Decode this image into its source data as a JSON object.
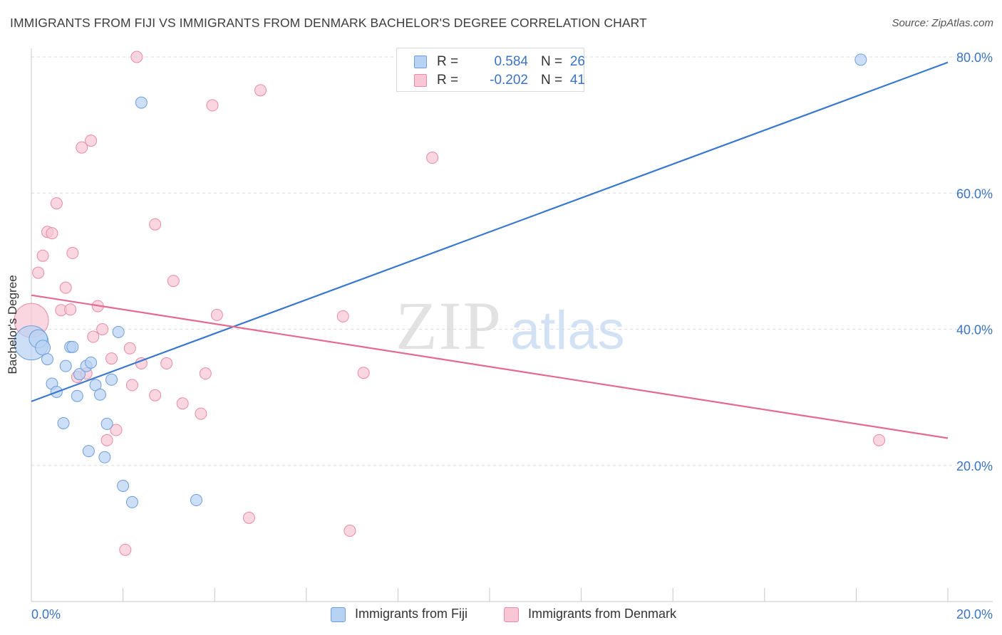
{
  "title": "IMMIGRANTS FROM FIJI VS IMMIGRANTS FROM DENMARK BACHELOR'S DEGREE CORRELATION CHART",
  "source": "Source: ZipAtlas.com",
  "watermark": {
    "zip": "ZIP",
    "atlas": "atlas"
  },
  "legend": {
    "r_label": "R =",
    "n_label": "N =",
    "fiji": {
      "r": "0.584",
      "n": "26"
    },
    "denmark": {
      "r": "-0.202",
      "n": "41"
    }
  },
  "colors": {
    "fiji_fill": "#b8d2f3",
    "fiji_stroke": "#6d9edd",
    "fiji_line": "#3a78d0",
    "denmark_fill": "#f8c6d4",
    "denmark_stroke": "#e98aa6",
    "denmark_line": "#e46a94",
    "axis_text": "#3b74c4"
  },
  "chart_data": {
    "type": "scatter",
    "title": "IMMIGRANTS FROM FIJI VS IMMIGRANTS FROM DENMARK BACHELOR'S DEGREE CORRELATION CHART",
    "xlabel": "",
    "ylabel": "Bachelor's Degree",
    "xlim": [
      0,
      20
    ],
    "ylim": [
      0,
      80
    ],
    "x_tick_labels": [
      "0.0%",
      "20.0%"
    ],
    "y_ticks": [
      20,
      40,
      60,
      80
    ],
    "y_tick_labels": [
      "20.0%",
      "40.0%",
      "60.0%",
      "80.0%"
    ],
    "grid": true,
    "series": [
      {
        "name": "Immigrants from Fiji",
        "points": [
          [
            0.0,
            38,
            3.0
          ],
          [
            0.15,
            38.6,
            1.6
          ],
          [
            0.25,
            37.3,
            1.3
          ],
          [
            0.35,
            35.6,
            1.0
          ],
          [
            0.45,
            32,
            1.0
          ],
          [
            0.55,
            30.8,
            1.0
          ],
          [
            0.7,
            26.2,
            1.0
          ],
          [
            0.75,
            34.6,
            1.0
          ],
          [
            0.85,
            37.4,
            1.0
          ],
          [
            0.9,
            37.4,
            1.0
          ],
          [
            1.0,
            30.2,
            1.0
          ],
          [
            1.05,
            33.4,
            1.0
          ],
          [
            1.2,
            34.6,
            1.0
          ],
          [
            1.25,
            22.1,
            1.0
          ],
          [
            1.3,
            35.1,
            1.0
          ],
          [
            1.4,
            31.8,
            1.0
          ],
          [
            1.5,
            30.4,
            1.0
          ],
          [
            1.6,
            21.2,
            1.0
          ],
          [
            1.65,
            26.1,
            1.0
          ],
          [
            1.75,
            32.6,
            1.0
          ],
          [
            1.9,
            39.6,
            1.0
          ],
          [
            2.0,
            17.0,
            1.0
          ],
          [
            2.2,
            14.6,
            1.0
          ],
          [
            2.4,
            73.3,
            1.0
          ],
          [
            3.6,
            14.9,
            1.0
          ],
          [
            18.1,
            79.6,
            1.0
          ]
        ],
        "trend": {
          "x": [
            0,
            20
          ],
          "y": [
            29.4,
            79.2
          ]
        }
      },
      {
        "name": "Immigrants from Denmark",
        "points": [
          [
            0.0,
            41.3,
            3.0
          ],
          [
            0.15,
            48.3,
            1.0
          ],
          [
            0.25,
            50.8,
            1.0
          ],
          [
            0.35,
            54.3,
            1.0
          ],
          [
            0.45,
            54.1,
            1.0
          ],
          [
            0.55,
            58.5,
            1.0
          ],
          [
            0.65,
            42.8,
            1.0
          ],
          [
            0.75,
            46.1,
            1.0
          ],
          [
            0.85,
            42.9,
            1.0
          ],
          [
            0.9,
            51.2,
            1.0
          ],
          [
            1.0,
            33.0,
            1.0
          ],
          [
            1.1,
            66.7,
            1.0
          ],
          [
            1.2,
            33.5,
            1.0
          ],
          [
            1.3,
            67.7,
            1.0
          ],
          [
            1.35,
            38.9,
            1.0
          ],
          [
            1.45,
            43.4,
            1.0
          ],
          [
            1.55,
            40.0,
            1.0
          ],
          [
            1.65,
            23.7,
            1.0
          ],
          [
            1.75,
            35.7,
            1.0
          ],
          [
            1.85,
            25.2,
            1.0
          ],
          [
            2.05,
            7.6,
            1.0
          ],
          [
            2.15,
            37.2,
            1.0
          ],
          [
            2.2,
            31.8,
            1.0
          ],
          [
            2.3,
            80.0,
            1.0
          ],
          [
            2.4,
            35.0,
            1.0
          ],
          [
            2.7,
            30.3,
            1.0
          ],
          [
            2.7,
            55.4,
            1.0
          ],
          [
            2.95,
            35.0,
            1.0
          ],
          [
            3.1,
            47.1,
            1.0
          ],
          [
            3.3,
            29.1,
            1.0
          ],
          [
            3.7,
            27.6,
            1.0
          ],
          [
            3.8,
            33.5,
            1.0
          ],
          [
            3.95,
            72.9,
            1.0
          ],
          [
            4.05,
            42.1,
            1.0
          ],
          [
            4.75,
            12.3,
            1.0
          ],
          [
            5.0,
            75.1,
            1.0
          ],
          [
            6.8,
            41.9,
            1.0
          ],
          [
            6.95,
            10.4,
            1.0
          ],
          [
            7.25,
            33.6,
            1.0
          ],
          [
            8.75,
            65.2,
            1.0
          ],
          [
            18.5,
            23.7,
            1.0
          ]
        ],
        "trend": {
          "x": [
            0,
            20
          ],
          "y": [
            45.0,
            24.0
          ]
        }
      }
    ]
  },
  "bottom_legend": {
    "fiji": "Immigrants from Fiji",
    "denmark": "Immigrants from Denmark"
  }
}
